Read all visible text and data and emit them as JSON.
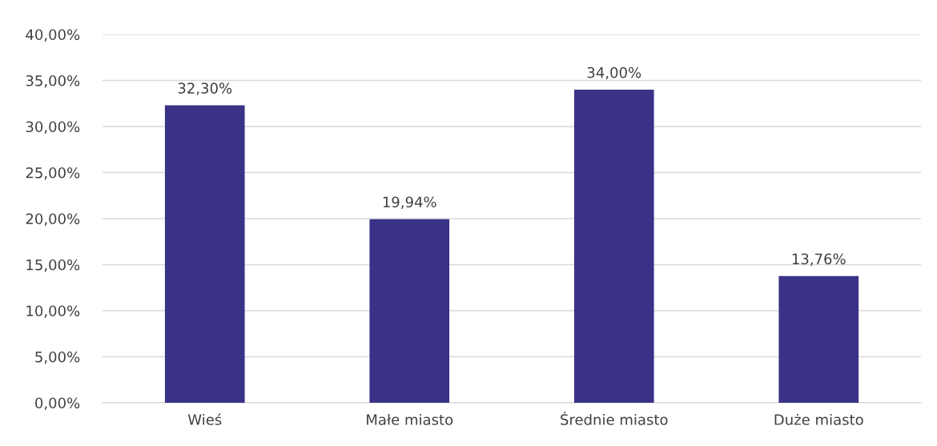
{
  "chart_data": {
    "type": "bar",
    "categories": [
      "Wieś",
      "Małe miasto",
      "Średnie miasto",
      "Duże miasto"
    ],
    "values": [
      32.3,
      19.94,
      34.0,
      13.76
    ],
    "value_labels": [
      "32,30%",
      "19,94%",
      "34,00%",
      "13,76%"
    ],
    "color": "#393286",
    "ylim": [
      0,
      40
    ],
    "yticks": [
      {
        "value": 0,
        "label": "0,00%"
      },
      {
        "value": 5,
        "label": "5,00%"
      },
      {
        "value": 10,
        "label": "10,00%"
      },
      {
        "value": 15,
        "label": "15,00%"
      },
      {
        "value": 20,
        "label": "20,00%"
      },
      {
        "value": 25,
        "label": "25,00%"
      },
      {
        "value": 30,
        "label": "30,00%"
      },
      {
        "value": 35,
        "label": "35,00%"
      },
      {
        "value": 40,
        "label": "40,00%"
      }
    ],
    "grid": "y"
  }
}
